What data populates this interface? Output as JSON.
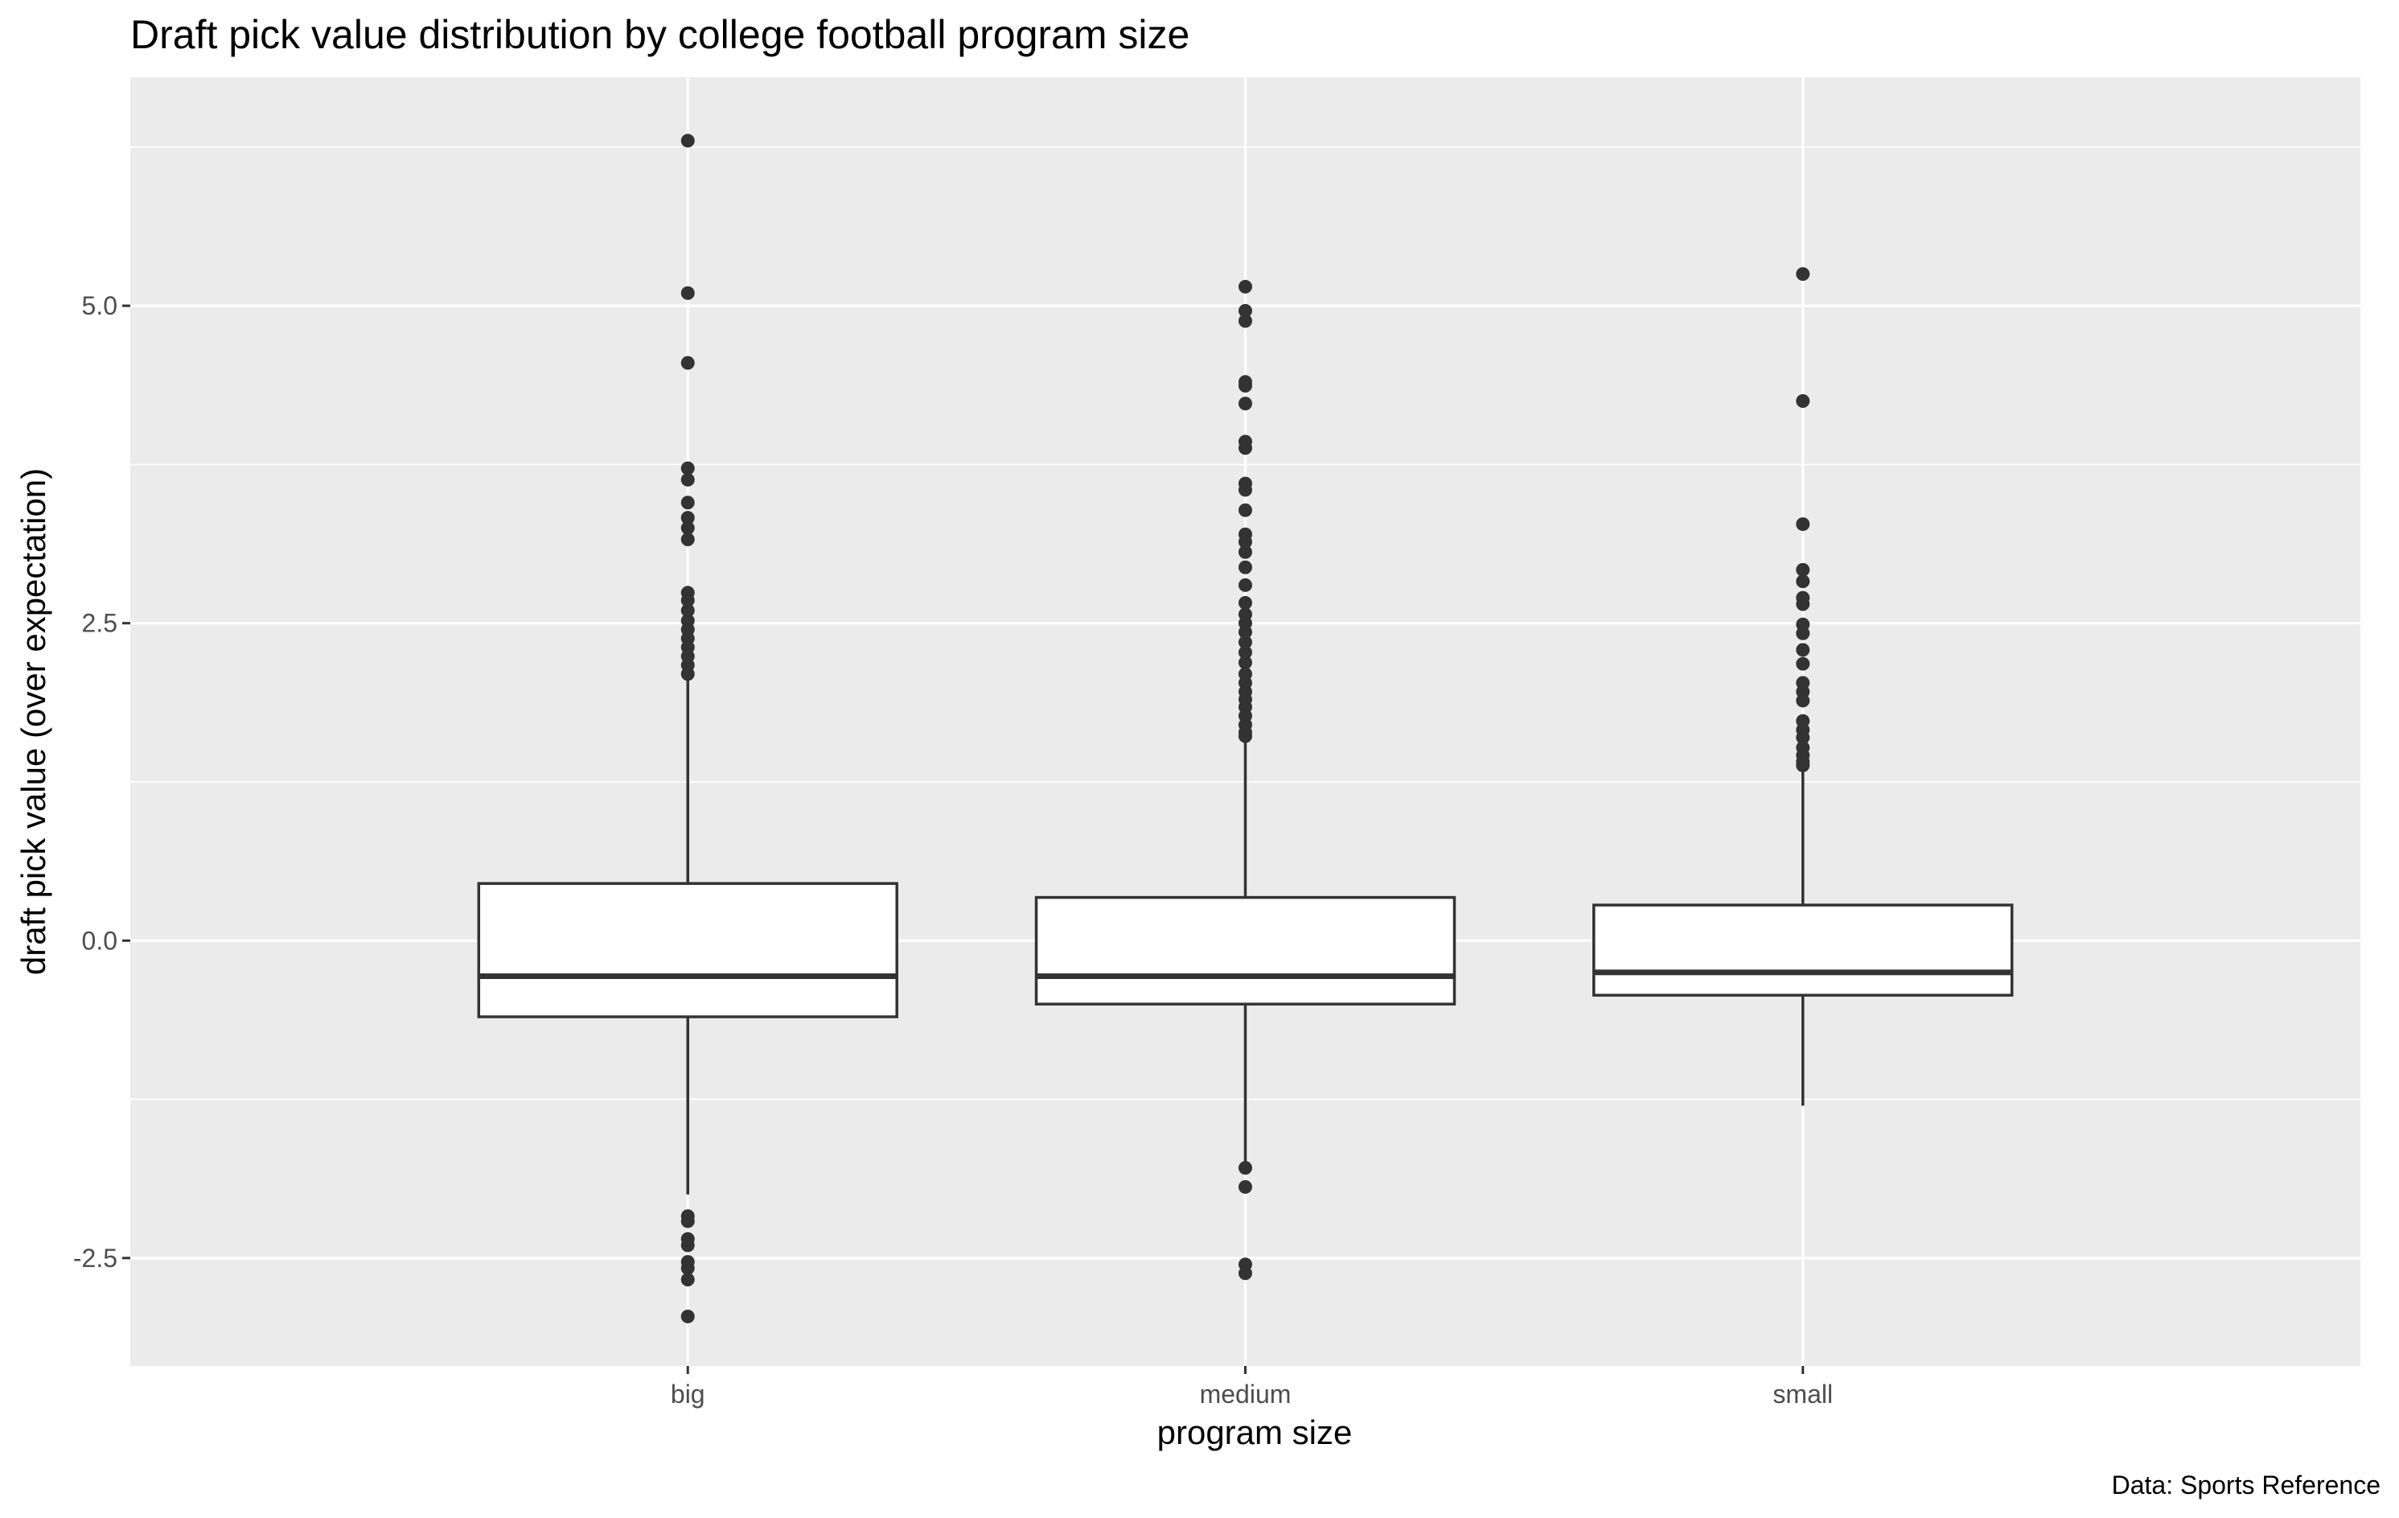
{
  "chart_data": {
    "type": "boxplot",
    "title": "Draft pick value distribution by college football program size",
    "xlabel": "program size",
    "ylabel": "draft pick value (over expectation)",
    "caption": "Data: Sports Reference",
    "categories": [
      "big",
      "medium",
      "small"
    ],
    "ylim": [
      -3.35,
      6.8
    ],
    "yticks": [
      -2.5,
      0.0,
      2.5,
      5.0
    ],
    "ytick_labels": [
      "-2.5",
      "0.0",
      "2.5",
      "5.0"
    ],
    "grid": true,
    "colors": {
      "panel": "#ebebeb",
      "grid": "#ffffff",
      "box_fill": "#ffffff",
      "line": "#333333"
    },
    "boxes": [
      {
        "category": "big",
        "whisker_low": -2.0,
        "q1": -0.6,
        "median": -0.28,
        "q3": 0.45,
        "whisker_high": 2.05,
        "outliers": [
          6.3,
          5.1,
          4.55,
          3.72,
          3.63,
          3.45,
          3.33,
          3.25,
          3.16,
          2.74,
          2.68,
          2.6,
          2.52,
          2.45,
          2.38,
          2.31,
          2.24,
          2.17,
          2.1,
          -2.17,
          -2.21,
          -2.35,
          -2.4,
          -2.53,
          -2.58,
          -2.67,
          -2.96
        ]
      },
      {
        "category": "medium",
        "whisker_low": -1.75,
        "q1": -0.5,
        "median": -0.28,
        "q3": 0.34,
        "whisker_high": 1.57,
        "outliers": [
          5.15,
          4.96,
          4.88,
          4.4,
          4.37,
          4.23,
          3.93,
          3.88,
          3.6,
          3.55,
          3.39,
          3.2,
          3.14,
          3.06,
          2.94,
          2.8,
          2.66,
          2.57,
          2.5,
          2.43,
          2.35,
          2.27,
          2.19,
          2.1,
          2.03,
          1.96,
          1.9,
          1.84,
          1.77,
          1.7,
          1.64,
          1.61,
          -1.79,
          -1.94,
          -2.55,
          -2.62
        ]
      },
      {
        "category": "small",
        "whisker_low": -1.3,
        "q1": -0.43,
        "median": -0.25,
        "q3": 0.28,
        "whisker_high": 1.35,
        "outliers": [
          5.25,
          4.25,
          3.28,
          2.92,
          2.83,
          2.7,
          2.65,
          2.49,
          2.42,
          2.29,
          2.18,
          2.03,
          1.96,
          1.89,
          1.73,
          1.66,
          1.6,
          1.52,
          1.46,
          1.41,
          1.38
        ]
      }
    ]
  }
}
